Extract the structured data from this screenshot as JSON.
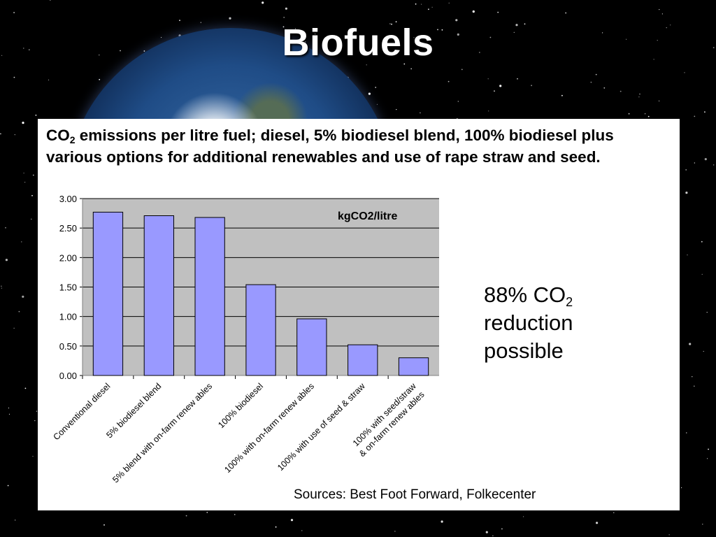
{
  "slide": {
    "title": "Biofuels",
    "caption_co": "CO",
    "caption_sub": "2",
    "caption_rest": " emissions per litre fuel; diesel, 5% biodiesel blend, 100% biodiesel plus various options for additional renewables and use of rape straw and seed.",
    "callout_line1_pre": "88% CO",
    "callout_sub": "2",
    "callout_line2": "reduction",
    "callout_line3": "possible",
    "sources": "Sources: Best Foot Forward, Folkecenter"
  },
  "chart_data": {
    "type": "bar",
    "categories": [
      "Conventional diesel",
      "5% biodiesel blend",
      "5% blend with on-farm renew ables",
      "100% biodiesel",
      "100% with on-farm renew ables",
      "100% with use of seed & straw",
      [
        "100% with seed/straw",
        "& on-farm renew ables"
      ]
    ],
    "values": [
      2.77,
      2.71,
      2.68,
      1.54,
      0.96,
      0.52,
      0.3
    ],
    "title": "kgCO2/litre",
    "xlabel": "",
    "ylabel": "",
    "ylim": [
      0,
      3
    ],
    "yticks": [
      "0.00",
      "0.50",
      "1.00",
      "1.50",
      "2.00",
      "2.50",
      "3.00"
    ],
    "grid": true,
    "colors": {
      "bar": "#9999ff",
      "bar_stroke": "#000000",
      "plot_bg": "#c0c0c0",
      "grid": "#000000"
    }
  },
  "colors": {
    "background": "#000000",
    "title": "#ffffff",
    "panel": "#ffffff"
  }
}
